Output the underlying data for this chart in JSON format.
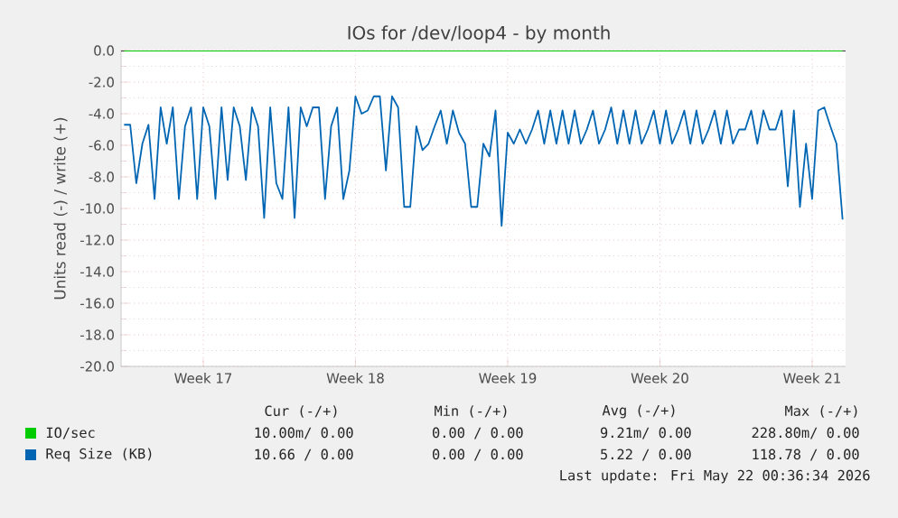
{
  "chart_data": {
    "type": "line",
    "title": "IOs for /dev/loop4 - by month",
    "ylabel": "Units read (-) / write (+)",
    "categories": [
      null,
      null,
      null,
      null,
      null,
      null,
      null,
      null,
      null,
      null,
      null,
      null,
      null,
      "Week 17",
      null,
      null,
      null,
      null,
      null,
      null,
      null,
      null,
      null,
      null,
      null,
      null,
      null,
      null,
      null,
      null,
      null,
      null,
      null,
      null,
      null,
      null,
      null,
      null,
      "Week 18",
      null,
      null,
      null,
      null,
      null,
      null,
      null,
      null,
      null,
      null,
      null,
      null,
      null,
      null,
      null,
      null,
      null,
      null,
      null,
      null,
      null,
      null,
      null,
      null,
      "Week 19",
      null,
      null,
      null,
      null,
      null,
      null,
      null,
      null,
      null,
      null,
      null,
      null,
      null,
      null,
      null,
      null,
      null,
      null,
      null,
      null,
      null,
      null,
      null,
      null,
      "Week 20",
      null,
      null,
      null,
      null,
      null,
      null,
      null,
      null,
      null,
      null,
      null,
      null,
      null,
      null,
      null,
      null,
      null,
      null,
      null,
      null,
      null,
      null,
      null,
      null,
      "Week 21",
      null,
      null,
      null,
      null,
      null
    ],
    "ylim": [
      -20,
      0
    ],
    "yticks": [
      {
        "value": -20,
        "label": "-20.0"
      },
      {
        "value": -18,
        "label": "-18.0"
      },
      {
        "value": -16,
        "label": "-16.0"
      },
      {
        "value": -14,
        "label": "-14.0"
      },
      {
        "value": -12,
        "label": "-12.0"
      },
      {
        "value": -10,
        "label": "-10.0"
      },
      {
        "value": -8,
        "label": "-8.0"
      },
      {
        "value": -6,
        "label": "-6.0"
      },
      {
        "value": -4,
        "label": "-4.0"
      },
      {
        "value": -2,
        "label": "-2.0"
      },
      {
        "value": 0,
        "label": "0.0"
      }
    ],
    "grid": true,
    "legend": "bottom",
    "marker": "none",
    "line_style": "solid",
    "ref_lines": [
      {
        "axis": "y",
        "value": 0,
        "color": "#000000"
      }
    ],
    "series": [
      {
        "name": "IO/sec",
        "color": "#00cc00",
        "values": [
          0,
          0,
          0,
          0,
          0,
          0,
          0,
          0,
          0,
          0,
          0,
          0,
          0,
          0,
          0,
          0,
          0,
          0,
          0,
          0,
          0,
          0,
          0,
          0,
          0,
          0,
          0,
          0,
          0,
          0,
          0,
          0,
          0,
          0,
          0,
          0,
          0,
          0,
          0,
          0,
          0,
          0,
          0,
          0,
          0,
          0,
          0,
          0,
          0,
          0,
          0,
          0,
          0,
          0,
          0,
          0,
          0,
          0,
          0,
          0,
          0,
          0,
          0,
          0,
          0,
          0,
          0,
          0,
          0,
          0,
          0,
          0,
          0,
          0,
          0,
          0,
          0,
          0,
          0,
          0,
          0,
          0,
          0,
          0,
          0,
          0,
          0,
          0,
          0,
          0,
          0,
          0,
          0,
          0,
          0,
          0,
          0,
          0,
          0,
          0,
          0,
          0,
          0,
          0,
          0,
          0,
          0,
          0,
          0,
          0,
          0,
          0,
          0,
          0,
          0,
          0,
          0,
          0,
          0
        ]
      },
      {
        "name": "Req Size (KB)",
        "color": "#0066b3",
        "values": [
          -4.7,
          -4.7,
          -8.4,
          -5.9,
          -4.7,
          -9.4,
          -3.6,
          -5.9,
          -3.6,
          -9.4,
          -4.8,
          -3.6,
          -9.4,
          -3.6,
          -4.8,
          -9.4,
          -3.6,
          -8.2,
          -3.6,
          -4.8,
          -8.2,
          -3.6,
          -4.8,
          -10.6,
          -3.6,
          -8.4,
          -9.4,
          -3.6,
          -10.6,
          -3.6,
          -4.8,
          -3.6,
          -3.6,
          -9.4,
          -4.8,
          -3.6,
          -9.4,
          -7.6,
          -2.9,
          -4.0,
          -3.8,
          -2.9,
          -2.9,
          -7.6,
          -2.9,
          -3.6,
          -9.9,
          -9.9,
          -4.8,
          -6.3,
          -5.9,
          -4.8,
          -3.8,
          -5.9,
          -3.8,
          -5.2,
          -5.9,
          -9.9,
          -9.9,
          -5.9,
          -6.7,
          -3.8,
          -11.1,
          -5.2,
          -5.9,
          -5.0,
          -5.9,
          -5.0,
          -3.8,
          -5.9,
          -3.8,
          -5.9,
          -3.8,
          -5.9,
          -3.8,
          -5.9,
          -5.0,
          -3.8,
          -5.9,
          -5.0,
          -3.6,
          -5.9,
          -3.8,
          -5.9,
          -3.8,
          -5.9,
          -5.0,
          -3.8,
          -5.9,
          -3.8,
          -5.9,
          -5.0,
          -3.8,
          -5.9,
          -3.8,
          -5.9,
          -5.0,
          -3.8,
          -5.9,
          -3.8,
          -5.9,
          -5.0,
          -5.0,
          -3.8,
          -5.9,
          -3.8,
          -5.0,
          -5.0,
          -3.8,
          -8.6,
          -3.8,
          -9.9,
          -5.9,
          -9.4,
          -3.8,
          -3.6,
          -4.8,
          -5.9,
          -10.7
        ]
      }
    ],
    "annotations": [
      "Cur (-/+)",
      "Min (-/+)",
      "Avg (-/+)",
      "Max (-/+)",
      "10.00m/ 0.00",
      "0.00 / 0.00",
      "9.21m/ 0.00",
      "228.80m/ 0.00",
      "10.66 / 0.00",
      "0.00 / 0.00",
      "5.22 / 0.00",
      "118.78 / 0.00",
      "Last update: Fri May 22 00:36:34 2026"
    ]
  }
}
